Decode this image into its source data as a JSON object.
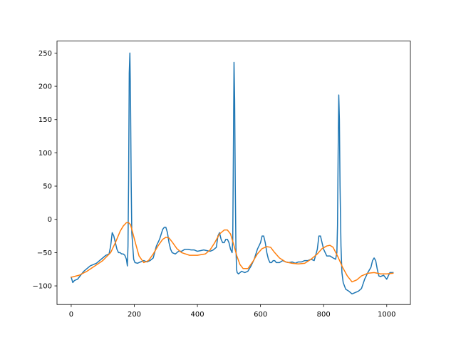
{
  "chart_data": {
    "type": "line",
    "title": "",
    "xlabel": "",
    "ylabel": "",
    "xlim": [
      -45,
      1075
    ],
    "ylim": [
      -128,
      268
    ],
    "grid": false,
    "legend": "none",
    "x_ticks": [
      0,
      200,
      400,
      600,
      800,
      1000
    ],
    "y_ticks": [
      -100,
      -50,
      0,
      50,
      100,
      150,
      200,
      250
    ],
    "x_tick_labels": [
      "0",
      "200",
      "400",
      "600",
      "800",
      "1000"
    ],
    "y_tick_labels": [
      "−100",
      "−50",
      "0",
      "50",
      "100",
      "150",
      "200",
      "250"
    ],
    "series": [
      {
        "color": "#1f77b4",
        "x": [
          0,
          5,
          10,
          20,
          30,
          40,
          50,
          60,
          70,
          80,
          90,
          100,
          110,
          120,
          125,
          130,
          135,
          140,
          145,
          150,
          155,
          160,
          165,
          170,
          175,
          178,
          180,
          182,
          184,
          186,
          188,
          190,
          192,
          195,
          198,
          202,
          210,
          220,
          230,
          240,
          250,
          260,
          270,
          280,
          290,
          295,
          300,
          305,
          310,
          315,
          320,
          330,
          340,
          350,
          360,
          370,
          380,
          390,
          400,
          410,
          420,
          430,
          440,
          450,
          460,
          465,
          470,
          475,
          480,
          485,
          490,
          495,
          500,
          505,
          510,
          512,
          514,
          516,
          518,
          520,
          522,
          524,
          526,
          530,
          535,
          540,
          550,
          560,
          570,
          580,
          590,
          600,
          605,
          610,
          615,
          620,
          625,
          630,
          635,
          640,
          645,
          650,
          660,
          670,
          680,
          690,
          700,
          710,
          720,
          730,
          740,
          750,
          760,
          770,
          780,
          785,
          790,
          795,
          800,
          805,
          810,
          820,
          830,
          838,
          842,
          844,
          846,
          848,
          850,
          852,
          855,
          858,
          862,
          870,
          880,
          890,
          900,
          910,
          920,
          930,
          940,
          950,
          955,
          960,
          965,
          970,
          975,
          980,
          990,
          1000,
          1010,
          1020
        ],
        "y": [
          -87,
          -95,
          -92,
          -90,
          -84,
          -78,
          -74,
          -70,
          -68,
          -66,
          -62,
          -58,
          -54,
          -52,
          -40,
          -20,
          -25,
          -35,
          -45,
          -50,
          -50,
          -52,
          -52,
          -54,
          -60,
          -70,
          -40,
          60,
          220,
          250,
          180,
          60,
          -20,
          -40,
          -60,
          -65,
          -66,
          -64,
          -62,
          -64,
          -62,
          -58,
          -40,
          -30,
          -15,
          -12,
          -12,
          -20,
          -35,
          -45,
          -50,
          -52,
          -48,
          -48,
          -45,
          -45,
          -46,
          -46,
          -48,
          -47,
          -46,
          -47,
          -48,
          -46,
          -42,
          -25,
          -20,
          -30,
          -35,
          -35,
          -30,
          -30,
          -35,
          -45,
          -50,
          -30,
          100,
          236,
          180,
          50,
          -40,
          -75,
          -80,
          -82,
          -80,
          -78,
          -80,
          -78,
          -70,
          -60,
          -45,
          -35,
          -25,
          -25,
          -35,
          -50,
          -60,
          -65,
          -65,
          -62,
          -62,
          -65,
          -65,
          -62,
          -64,
          -65,
          -64,
          -66,
          -64,
          -64,
          -62,
          -62,
          -60,
          -62,
          -45,
          -25,
          -25,
          -35,
          -45,
          -50,
          -55,
          -55,
          -58,
          -60,
          -50,
          -10,
          100,
          187,
          150,
          50,
          -40,
          -80,
          -95,
          -105,
          -108,
          -112,
          -110,
          -108,
          -104,
          -90,
          -80,
          -72,
          -62,
          -58,
          -62,
          -75,
          -85,
          -86,
          -84,
          -90,
          -80,
          -80
        ]
      },
      {
        "color": "#ff7f0e",
        "x": [
          0,
          25,
          50,
          75,
          100,
          125,
          140,
          155,
          165,
          175,
          182,
          188,
          195,
          205,
          215,
          230,
          245,
          260,
          275,
          290,
          300,
          310,
          320,
          335,
          350,
          375,
          400,
          425,
          440,
          455,
          470,
          485,
          495,
          505,
          515,
          525,
          535,
          545,
          560,
          575,
          590,
          605,
          620,
          632,
          645,
          660,
          680,
          700,
          720,
          740,
          760,
          780,
          795,
          810,
          820,
          830,
          845,
          860,
          875,
          890,
          905,
          920,
          940,
          960,
          980,
          1000,
          1020
        ],
        "y": [
          -87,
          -84,
          -78,
          -70,
          -62,
          -50,
          -35,
          -18,
          -10,
          -5,
          -5,
          -8,
          -20,
          -38,
          -55,
          -65,
          -62,
          -52,
          -40,
          -30,
          -27,
          -28,
          -34,
          -44,
          -50,
          -54,
          -54,
          -52,
          -46,
          -35,
          -22,
          -16,
          -16,
          -22,
          -38,
          -55,
          -68,
          -74,
          -74,
          -64,
          -52,
          -44,
          -41,
          -42,
          -50,
          -58,
          -64,
          -66,
          -67,
          -66,
          -60,
          -52,
          -44,
          -40,
          -39,
          -42,
          -56,
          -72,
          -85,
          -94,
          -91,
          -85,
          -81,
          -80,
          -82,
          -82,
          -81
        ]
      }
    ]
  }
}
